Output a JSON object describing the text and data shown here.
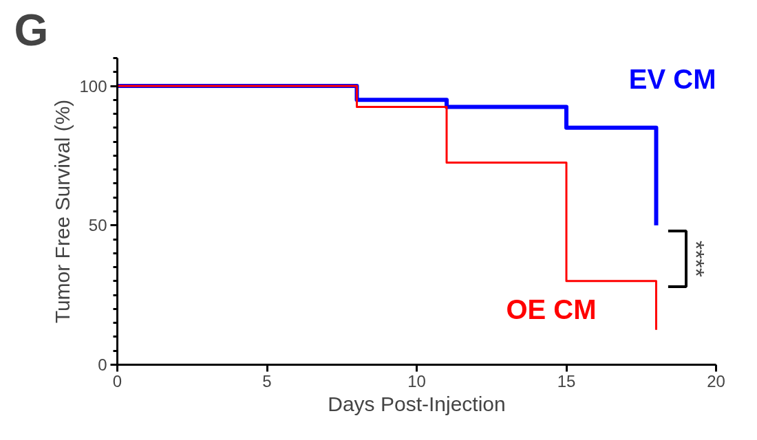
{
  "chart_data": {
    "type": "step",
    "title": "G",
    "xlabel": "Days Post-Injection",
    "ylabel": "Tumor Free Survival (%)",
    "xlim": [
      0,
      20
    ],
    "ylim": [
      0,
      110
    ],
    "xticks": [
      0,
      5,
      10,
      15,
      20
    ],
    "yticks": [
      0,
      50,
      100
    ],
    "grid": false,
    "legend": false,
    "series": [
      {
        "name": "EV CM",
        "color": "#0000ff",
        "x": [
          0,
          8,
          11,
          15,
          18
        ],
        "values": [
          100,
          95,
          92.5,
          85,
          50
        ]
      },
      {
        "name": "OE CM",
        "color": "#ff0000",
        "x": [
          0,
          8,
          11,
          15,
          18
        ],
        "values": [
          100,
          92.5,
          72.5,
          30,
          12.5
        ]
      }
    ],
    "annotations": [
      "****"
    ]
  }
}
